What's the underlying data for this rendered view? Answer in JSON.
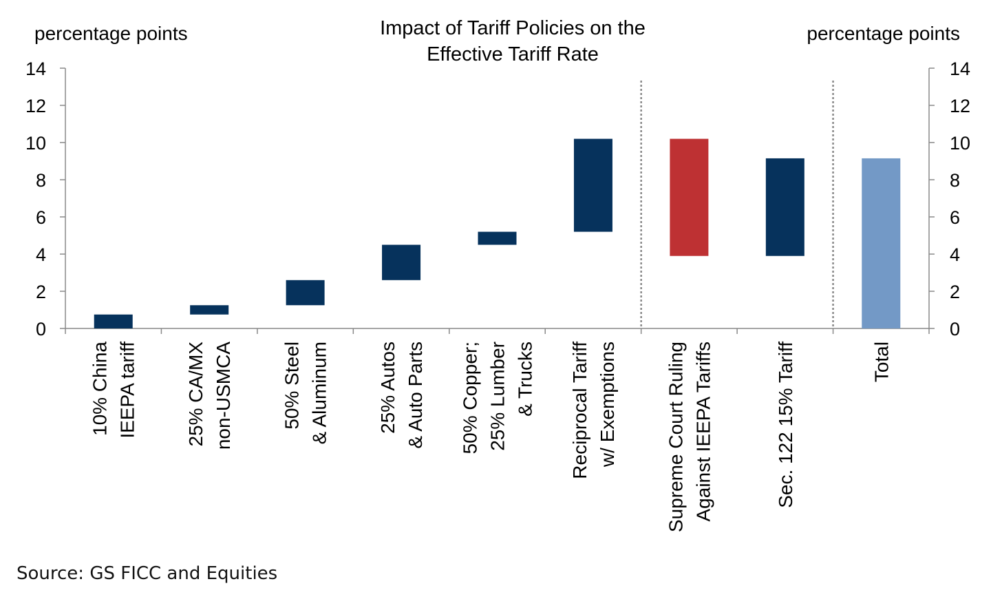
{
  "chart_data": {
    "type": "bar",
    "subtype": "waterfall",
    "title": [
      "Impact of Tariff Policies on the",
      "Effective  Tariff  Rate"
    ],
    "ylabel_left": "percentage  points",
    "ylabel_right": "percentage  points",
    "ylim": [
      0,
      14
    ],
    "yticks": [
      0,
      2,
      4,
      6,
      8,
      10,
      12,
      14
    ],
    "categories": [
      [
        "10% China",
        "IEEPA tariff"
      ],
      [
        "25% CA/MX",
        "non-USMCA"
      ],
      [
        "50% Steel",
        "& Aluminum"
      ],
      [
        "25% Autos",
        "& Auto Parts"
      ],
      [
        "50% Copper;",
        "25% Lumber",
        "& Trucks"
      ],
      [
        "Reciprocal Tariff",
        "w/ Exemptions"
      ],
      [
        "Supreme Court Ruling",
        "Against IEEPA Tariffs"
      ],
      [
        "Sec. 122 15% Tariff"
      ],
      [
        "Total"
      ]
    ],
    "bars": [
      {
        "start": 0,
        "end": 0.75,
        "kind": "increase"
      },
      {
        "start": 0.75,
        "end": 1.25,
        "kind": "increase"
      },
      {
        "start": 1.25,
        "end": 2.6,
        "kind": "increase"
      },
      {
        "start": 2.6,
        "end": 4.5,
        "kind": "increase"
      },
      {
        "start": 4.5,
        "end": 5.2,
        "kind": "increase"
      },
      {
        "start": 5.2,
        "end": 10.2,
        "kind": "increase"
      },
      {
        "start": 10.2,
        "end": 3.9,
        "kind": "decrease"
      },
      {
        "start": 3.9,
        "end": 9.15,
        "kind": "increase"
      },
      {
        "start": 0,
        "end": 9.15,
        "kind": "total"
      }
    ],
    "separators_after": [
      6,
      8
    ],
    "colors": {
      "increase": "#06325c",
      "decrease": "#be3133",
      "total": "#7399c6"
    },
    "grid": false
  },
  "source": "Source: GS FICC and Equities"
}
